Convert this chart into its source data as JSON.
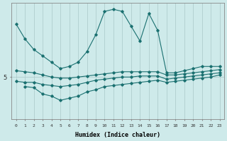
{
  "xlabel": "Humidex (Indice chaleur)",
  "x_ticks": [
    0,
    1,
    2,
    3,
    4,
    5,
    6,
    7,
    8,
    9,
    10,
    11,
    12,
    13,
    14,
    15,
    16,
    17,
    18,
    19,
    20,
    21,
    22,
    23
  ],
  "xlim": [
    -0.5,
    23.5
  ],
  "ylim": [
    3.0,
    8.5
  ],
  "ytick_val": 5,
  "background_color": "#ceeaea",
  "grid_color": "#b0cece",
  "line_color": "#1a7070",
  "series": {
    "line1": {
      "x": [
        0,
        1,
        2,
        3,
        4,
        5,
        6,
        7,
        8,
        9,
        10,
        11,
        12,
        13,
        14,
        15,
        16,
        17,
        18,
        19,
        20,
        21,
        22,
        23
      ],
      "y": [
        7.5,
        6.8,
        6.3,
        6.0,
        5.7,
        5.4,
        5.5,
        5.7,
        6.2,
        7.0,
        8.1,
        8.2,
        8.1,
        7.4,
        6.7,
        8.0,
        7.2,
        5.2,
        5.2,
        5.3,
        5.4,
        5.5,
        5.5,
        5.5
      ]
    },
    "line2": {
      "x": [
        0,
        1,
        2,
        3,
        4,
        5,
        6,
        7,
        8,
        9,
        10,
        11,
        12,
        13,
        14,
        15,
        16,
        17,
        18,
        19,
        20,
        21,
        22,
        23
      ],
      "y": [
        5.3,
        5.25,
        5.2,
        5.1,
        5.0,
        4.95,
        4.95,
        5.0,
        5.05,
        5.1,
        5.15,
        5.2,
        5.25,
        5.25,
        5.25,
        5.25,
        5.25,
        5.1,
        5.1,
        5.15,
        5.2,
        5.25,
        5.3,
        5.35
      ]
    },
    "line3": {
      "x": [
        0,
        1,
        2,
        3,
        4,
        5,
        6,
        7,
        8,
        9,
        10,
        11,
        12,
        13,
        14,
        15,
        16,
        17,
        18,
        19,
        20,
        21,
        22,
        23
      ],
      "y": [
        4.8,
        4.75,
        4.75,
        4.65,
        4.6,
        4.55,
        4.6,
        4.65,
        4.75,
        4.85,
        4.9,
        4.95,
        5.0,
        5.0,
        5.05,
        5.05,
        5.05,
        4.9,
        4.95,
        5.0,
        5.05,
        5.1,
        5.15,
        5.2
      ]
    },
    "line4": {
      "x": [
        1,
        2,
        3,
        4,
        5,
        6,
        7,
        8,
        9,
        10,
        11,
        12,
        13,
        14,
        15,
        16,
        17,
        18,
        19,
        20,
        21,
        22,
        23
      ],
      "y": [
        4.55,
        4.5,
        4.2,
        4.1,
        3.9,
        4.0,
        4.1,
        4.3,
        4.4,
        4.55,
        4.6,
        4.65,
        4.7,
        4.75,
        4.8,
        4.85,
        4.75,
        4.8,
        4.85,
        4.9,
        4.95,
        5.0,
        5.1
      ]
    }
  }
}
